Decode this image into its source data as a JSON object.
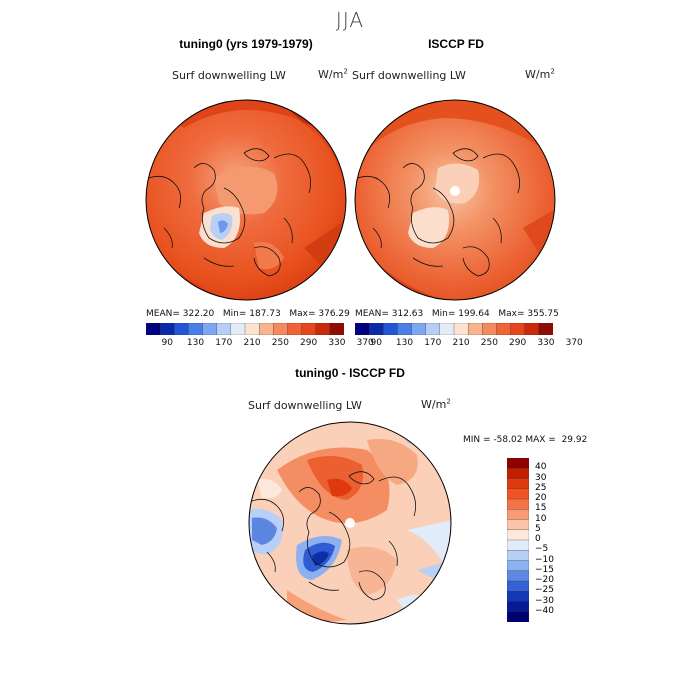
{
  "season_title": "JJA",
  "panels": {
    "model": {
      "title": "tuning0 (yrs 1979-1979)",
      "variable": "Surf downwelling LW",
      "units": "W/m",
      "units_exp": "2",
      "stats": {
        "mean_label": "MEAN=",
        "mean": "322.20",
        "min_label": "Min=",
        "min": "187.73",
        "max_label": "Max=",
        "max": "376.29"
      }
    },
    "obs": {
      "title": "ISCCP FD",
      "variable": "Surf downwelling LW",
      "units": "W/m",
      "units_exp": "2",
      "stats": {
        "mean_label": "MEAN=",
        "mean": "312.63",
        "min_label": "Min=",
        "min": "199.64",
        "max_label": "Max=",
        "max": "355.75"
      }
    },
    "diff": {
      "title": "tuning0 - ISCCP FD",
      "variable": "Surf downwelling LW",
      "units": "W/m",
      "units_exp": "2",
      "stats": {
        "min_label": "MIN =",
        "min": "-58.02",
        "max_label": "MAX =",
        "max": "29.92"
      }
    }
  },
  "colorbar_abs": {
    "ticks": [
      "90",
      "130",
      "170",
      "210",
      "250",
      "290",
      "330",
      "370"
    ],
    "colors": [
      "#00007f",
      "#0a2aa8",
      "#2356d6",
      "#4a7fe8",
      "#7ea6f2",
      "#b6cdf7",
      "#e3ebf7",
      "#fbe3d1",
      "#f8b48e",
      "#f48a5d",
      "#ef6436",
      "#e5461c",
      "#c92a0c",
      "#8f0c05"
    ]
  },
  "colorbar_diff": {
    "ticks": [
      "40",
      "30",
      "25",
      "20",
      "15",
      "10",
      "5",
      "0",
      "-5",
      "-10",
      "-15",
      "-20",
      "-25",
      "-30",
      "-40"
    ],
    "colors": [
      "#8f0000",
      "#c11f00",
      "#df3a0e",
      "#ee5426",
      "#f47447",
      "#f89a75",
      "#fbc4a8",
      "#fde9dc",
      "#e1ecfb",
      "#b8d0f7",
      "#8cb0f0",
      "#5d88e3",
      "#3361d6",
      "#1537b5",
      "#061a94",
      "#000070"
    ]
  }
}
